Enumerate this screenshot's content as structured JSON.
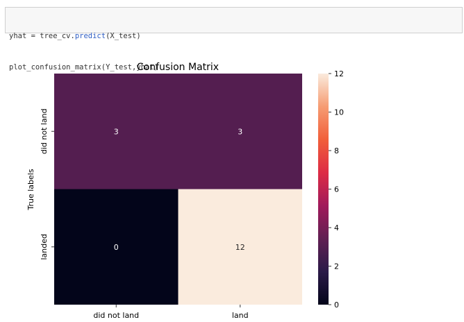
{
  "notebook": {
    "code_lines": [
      {
        "before": "yhat = tree_cv.",
        "fn": "predict",
        "after": "(X_test)"
      },
      {
        "before": "plot_confusion_matrix(Y_test,yhat)",
        "fn": "",
        "after": ""
      }
    ]
  },
  "chart_data": {
    "type": "heatmap",
    "title": "Confusion Matrix",
    "xlabel": "",
    "ylabel": "True labels",
    "x_categories": [
      "did not land",
      "land"
    ],
    "y_categories": [
      "did not land",
      "landed"
    ],
    "values": [
      [
        3,
        3
      ],
      [
        0,
        12
      ]
    ],
    "colorbar": {
      "min": 0,
      "max": 12,
      "ticks": [
        0,
        2,
        4,
        6,
        8,
        10,
        12
      ]
    },
    "colormap": [
      "#03051a",
      "#2b1a48",
      "#611f53",
      "#a11a5b",
      "#dd2c45",
      "#f15f3a",
      "#f69c73",
      "#faebdd"
    ]
  }
}
